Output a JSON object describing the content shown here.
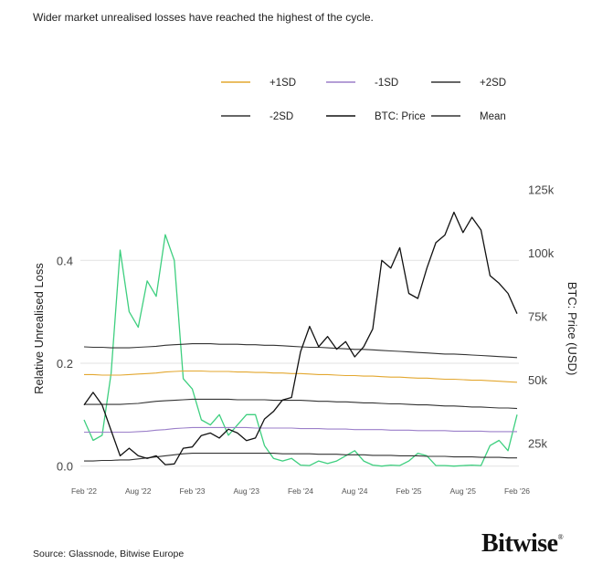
{
  "title": "Wider market unrealised losses have reached the highest of the cycle.",
  "source": "Source: Glassnode, Bitwise Europe",
  "logo": "Bitwise",
  "chart_data": {
    "type": "line",
    "title": "",
    "ylabel_left": "Relative Unrealised Loss",
    "ylabel_right": "BTC: Price (USD)",
    "ylim_left": [
      0,
      0.46
    ],
    "ylim_right": [
      0,
      128000
    ],
    "yticks_left": [
      {
        "v": 0,
        "label": "0.0"
      },
      {
        "v": 0.2,
        "label": "0.2"
      },
      {
        "v": 0.4,
        "label": "0.4"
      }
    ],
    "yticks_right": [
      {
        "v": 25000,
        "label": "25k"
      },
      {
        "v": 50000,
        "label": "50k"
      },
      {
        "v": 75000,
        "label": "75k"
      },
      {
        "v": 100000,
        "label": "100k"
      },
      {
        "v": 125000,
        "label": "125k"
      }
    ],
    "xticks": [
      "Feb '22",
      "Aug '22",
      "Feb '23",
      "Aug '23",
      "Feb '24",
      "Aug '24",
      "Feb '25",
      "Aug '25",
      "Feb '26"
    ],
    "x_start": "2022-02",
    "x_end": "2026-02",
    "grid": "horizontal",
    "legend_position": "top",
    "x": [
      "2022-02",
      "2022-03",
      "2022-04",
      "2022-05",
      "2022-06",
      "2022-07",
      "2022-08",
      "2022-09",
      "2022-10",
      "2022-11",
      "2022-12",
      "2023-01",
      "2023-02",
      "2023-03",
      "2023-04",
      "2023-05",
      "2023-06",
      "2023-07",
      "2023-08",
      "2023-09",
      "2023-10",
      "2023-11",
      "2023-12",
      "2024-01",
      "2024-02",
      "2024-03",
      "2024-04",
      "2024-05",
      "2024-06",
      "2024-07",
      "2024-08",
      "2024-09",
      "2024-10",
      "2024-11",
      "2024-12",
      "2025-01",
      "2025-02",
      "2025-03",
      "2025-04",
      "2025-05",
      "2025-06",
      "2025-07",
      "2025-08",
      "2025-09",
      "2025-10",
      "2025-11",
      "2025-12",
      "2026-01",
      "2026-02"
    ],
    "series": [
      {
        "name": "+1SD",
        "axis": "left",
        "color": "#e3a72f",
        "values": [
          0.178,
          0.178,
          0.177,
          0.177,
          0.177,
          0.178,
          0.179,
          0.18,
          0.181,
          0.183,
          0.184,
          0.185,
          0.185,
          0.185,
          0.184,
          0.184,
          0.184,
          0.183,
          0.183,
          0.182,
          0.182,
          0.181,
          0.181,
          0.18,
          0.18,
          0.179,
          0.178,
          0.178,
          0.177,
          0.176,
          0.176,
          0.175,
          0.175,
          0.174,
          0.173,
          0.173,
          0.172,
          0.171,
          0.171,
          0.17,
          0.169,
          0.169,
          0.168,
          0.167,
          0.167,
          0.166,
          0.165,
          0.164,
          0.163
        ]
      },
      {
        "name": "-1SD",
        "axis": "left",
        "color": "#9b7fc9",
        "values": [
          0.066,
          0.066,
          0.066,
          0.066,
          0.066,
          0.066,
          0.067,
          0.068,
          0.07,
          0.071,
          0.073,
          0.074,
          0.075,
          0.075,
          0.075,
          0.075,
          0.075,
          0.075,
          0.075,
          0.074,
          0.074,
          0.074,
          0.074,
          0.074,
          0.073,
          0.073,
          0.073,
          0.072,
          0.072,
          0.072,
          0.071,
          0.071,
          0.071,
          0.071,
          0.07,
          0.07,
          0.07,
          0.069,
          0.069,
          0.069,
          0.069,
          0.068,
          0.068,
          0.068,
          0.068,
          0.067,
          0.067,
          0.067,
          0.067
        ]
      },
      {
        "name": "+2SD",
        "axis": "left",
        "color": "#333333",
        "values": [
          0.232,
          0.231,
          0.231,
          0.23,
          0.23,
          0.23,
          0.231,
          0.232,
          0.233,
          0.235,
          0.236,
          0.237,
          0.238,
          0.238,
          0.238,
          0.237,
          0.237,
          0.237,
          0.236,
          0.236,
          0.235,
          0.235,
          0.234,
          0.233,
          0.232,
          0.231,
          0.231,
          0.23,
          0.229,
          0.228,
          0.227,
          0.227,
          0.226,
          0.225,
          0.224,
          0.223,
          0.222,
          0.221,
          0.22,
          0.219,
          0.218,
          0.218,
          0.217,
          0.216,
          0.215,
          0.214,
          0.213,
          0.212,
          0.211
        ]
      },
      {
        "name": "-2SD",
        "axis": "left",
        "color": "#333333",
        "values": [
          0.01,
          0.01,
          0.011,
          0.011,
          0.012,
          0.012,
          0.014,
          0.016,
          0.018,
          0.02,
          0.022,
          0.024,
          0.025,
          0.025,
          0.025,
          0.025,
          0.025,
          0.025,
          0.025,
          0.025,
          0.025,
          0.025,
          0.024,
          0.024,
          0.024,
          0.024,
          0.023,
          0.023,
          0.023,
          0.022,
          0.022,
          0.022,
          0.021,
          0.021,
          0.021,
          0.02,
          0.02,
          0.02,
          0.019,
          0.019,
          0.019,
          0.018,
          0.018,
          0.018,
          0.017,
          0.017,
          0.017,
          0.016,
          0.016
        ]
      },
      {
        "name": "BTC: Price",
        "axis": "right",
        "color": "#111111",
        "values": [
          40000,
          45000,
          40000,
          30000,
          20000,
          23000,
          20000,
          19000,
          20000,
          16500,
          16800,
          23000,
          23500,
          28000,
          29000,
          27000,
          30500,
          29000,
          26000,
          27000,
          34500,
          37500,
          42000,
          43000,
          61000,
          71000,
          63000,
          67000,
          62000,
          65000,
          59000,
          63000,
          70000,
          97000,
          94000,
          102000,
          84000,
          82000,
          94000,
          104000,
          107000,
          116000,
          108000,
          114000,
          109000,
          91000,
          88000,
          84000,
          76000
        ]
      },
      {
        "name": "Mean",
        "axis": "left",
        "color": "#333333",
        "values": [
          0.12,
          0.12,
          0.12,
          0.12,
          0.12,
          0.121,
          0.122,
          0.124,
          0.126,
          0.127,
          0.128,
          0.129,
          0.13,
          0.13,
          0.13,
          0.13,
          0.13,
          0.129,
          0.129,
          0.129,
          0.129,
          0.128,
          0.128,
          0.128,
          0.128,
          0.127,
          0.126,
          0.126,
          0.125,
          0.125,
          0.124,
          0.123,
          0.123,
          0.122,
          0.121,
          0.121,
          0.12,
          0.119,
          0.119,
          0.118,
          0.117,
          0.117,
          0.116,
          0.115,
          0.115,
          0.114,
          0.113,
          0.113,
          0.112
        ]
      },
      {
        "axis": "left",
        "color": "#3ecf7f",
        "values": [
          0.09,
          0.05,
          0.06,
          0.18,
          0.42,
          0.3,
          0.27,
          0.36,
          0.33,
          0.45,
          0.4,
          0.17,
          0.15,
          0.09,
          0.08,
          0.1,
          0.06,
          0.08,
          0.1,
          0.1,
          0.04,
          0.015,
          0.01,
          0.015,
          0.002,
          0.001,
          0.01,
          0.005,
          0.01,
          0.02,
          0.03,
          0.01,
          0.002,
          0.0,
          0.002,
          0.001,
          0.01,
          0.025,
          0.02,
          0.001,
          0.001,
          0.0,
          0.001,
          0.002,
          0.001,
          0.04,
          0.05,
          0.03,
          0.1
        ]
      }
    ]
  }
}
